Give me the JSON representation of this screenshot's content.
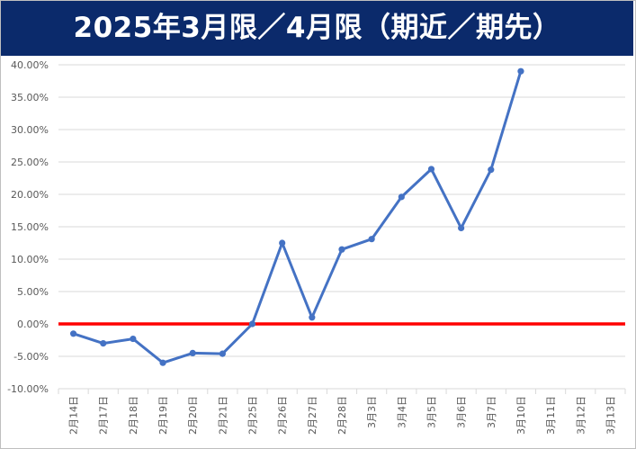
{
  "title": "2025年3月限／4月限（期近／期先）",
  "colors": {
    "title_background": "#0b2a6b",
    "title_text": "#ffffff",
    "series_line": "#4472c4",
    "zero_line": "#ff0000",
    "grid": "#d9d9d9",
    "tick_text": "#595959"
  },
  "chart_data": {
    "type": "line",
    "title": "2025年3月限／4月限（期近／期先）",
    "xlabel": "",
    "ylabel": "",
    "ylim": [
      -0.1,
      0.4
    ],
    "ytick_step": 0.05,
    "ytick_format": "percent_2dp",
    "grid": true,
    "legend": "none",
    "reference_line": {
      "y": 0,
      "color": "#ff0000"
    },
    "categories": [
      "2月14日",
      "2月17日",
      "2月18日",
      "2月19日",
      "2月20日",
      "2月21日",
      "2月25日",
      "2月26日",
      "2月27日",
      "2月28日",
      "3月3日",
      "3月4日",
      "3月5日",
      "3月6日",
      "3月7日",
      "3月10日",
      "3月11日",
      "3月12日",
      "3月13日"
    ],
    "series": [
      {
        "values": [
          -0.015,
          -0.03,
          -0.023,
          -0.06,
          -0.045,
          -0.046,
          0.0,
          0.125,
          0.01,
          0.115,
          0.131,
          0.196,
          0.239,
          0.148,
          0.238,
          0.39,
          null,
          null,
          null
        ]
      }
    ]
  }
}
